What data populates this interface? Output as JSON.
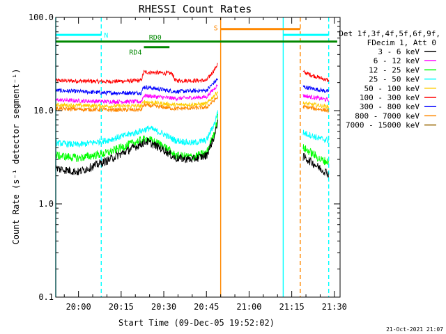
{
  "chart_data": {
    "type": "line",
    "title": "RHESSI Count Rates",
    "xlabel": "Start Time (09-Dec-05 19:52:02)",
    "ylabel": "Count Rate (s⁻¹ detector segment⁻¹)",
    "y_scale": "log",
    "ylim": [
      0.1,
      100
    ],
    "xlim": [
      "19:52",
      "21:32"
    ],
    "x_ticks": [
      "20:00",
      "20:15",
      "20:30",
      "20:45",
      "21:00",
      "21:15",
      "21:30"
    ],
    "y_ticks": [
      "0.1",
      "1.0",
      "10.0",
      "100.0"
    ],
    "grid": false,
    "legend_position": "right",
    "legend_header": [
      "Det 1f,3f,4f,5f,6f,9f,",
      "FDecim 1, Att 0"
    ],
    "series": [
      {
        "name": "3 - 6 keV",
        "color": "#000000",
        "segments": [
          {
            "x": [
              "19:52",
              "20:00",
              "20:10",
              "20:20",
              "20:24",
              "20:30",
              "20:34",
              "20:40",
              "20:45",
              "20:48",
              "20:49"
            ],
            "y": [
              2.4,
              2.2,
              2.9,
              4.1,
              4.7,
              3.8,
              3.1,
              3.0,
              3.3,
              5.5,
              8.0
            ]
          },
          {
            "x": [
              "21:19",
              "21:22",
              "21:25",
              "21:28"
            ],
            "y": [
              3.2,
              2.8,
              2.4,
              2.1
            ]
          }
        ]
      },
      {
        "name": "6 - 12 keV",
        "color": "#ff00ff",
        "segments": [
          {
            "x": [
              "19:52",
              "20:10",
              "20:22",
              "20:23",
              "20:34",
              "20:45",
              "20:49"
            ],
            "y": [
              13,
              12.5,
              12.5,
              14.5,
              13.5,
              14,
              19
            ]
          },
          {
            "x": [
              "21:19",
              "21:28"
            ],
            "y": [
              14.5,
              13
            ]
          }
        ]
      },
      {
        "name": "12 - 25 keV",
        "color": "#00ff00",
        "segments": [
          {
            "x": [
              "19:52",
              "20:00",
              "20:10",
              "20:20",
              "20:24",
              "20:30",
              "20:34",
              "20:40",
              "20:45",
              "20:48",
              "20:49"
            ],
            "y": [
              3.3,
              3.1,
              3.5,
              4.6,
              5.0,
              4.2,
              3.3,
              3.2,
              3.5,
              6.0,
              8.5
            ]
          },
          {
            "x": [
              "21:19",
              "21:22",
              "21:25",
              "21:28"
            ],
            "y": [
              4.0,
              3.5,
              3.0,
              2.8
            ]
          }
        ]
      },
      {
        "name": "25 - 50 keV",
        "color": "#00ffff",
        "segments": [
          {
            "x": [
              "19:52",
              "20:00",
              "20:10",
              "20:20",
              "20:25",
              "20:30",
              "20:34",
              "20:40",
              "20:45",
              "20:48",
              "20:49"
            ],
            "y": [
              4.5,
              4.3,
              4.8,
              5.8,
              6.5,
              5.6,
              4.8,
              4.5,
              4.8,
              7.5,
              10
            ]
          },
          {
            "x": [
              "21:19",
              "21:22",
              "21:25",
              "21:28"
            ],
            "y": [
              5.8,
              5.4,
              5.0,
              4.8
            ]
          }
        ]
      },
      {
        "name": "50 - 100 keV",
        "color": "#ffcc00",
        "segments": [
          {
            "x": [
              "19:52",
              "20:10",
              "20:22",
              "20:23",
              "20:34",
              "20:45",
              "20:49"
            ],
            "y": [
              11.5,
              11.2,
              11.2,
              12.5,
              11.5,
              11.8,
              16
            ]
          },
          {
            "x": [
              "21:19",
              "21:28"
            ],
            "y": [
              12,
              11
            ]
          }
        ]
      },
      {
        "name": "100 - 300 keV",
        "color": "#ff0000",
        "segments": [
          {
            "x": [
              "19:52",
              "20:10",
              "20:22",
              "20:23",
              "20:33",
              "20:34",
              "20:45",
              "20:48",
              "20:49"
            ],
            "y": [
              21,
              20.5,
              21,
              26,
              25,
              21,
              21,
              28,
              32
            ]
          },
          {
            "x": [
              "21:19",
              "21:22",
              "21:28"
            ],
            "y": [
              26,
              24,
              21
            ]
          }
        ]
      },
      {
        "name": "300 - 800 keV",
        "color": "#0000ff",
        "segments": [
          {
            "x": [
              "19:52",
              "20:10",
              "20:22",
              "20:23",
              "20:34",
              "20:45",
              "20:49"
            ],
            "y": [
              16.5,
              15.5,
              15.5,
              18,
              16,
              16.5,
              22
            ]
          },
          {
            "x": [
              "21:19",
              "21:28"
            ],
            "y": [
              18,
              16
            ]
          }
        ]
      },
      {
        "name": "800 - 7000 keV",
        "color": "#ff8800",
        "segments": [
          {
            "x": [
              "19:52",
              "20:10",
              "20:22",
              "20:23",
              "20:34",
              "20:45",
              "20:49"
            ],
            "y": [
              10.5,
              10.2,
              10.2,
              11.5,
              10.5,
              10.8,
              14
            ]
          },
          {
            "x": [
              "21:19",
              "21:28"
            ],
            "y": [
              11,
              10
            ]
          }
        ]
      },
      {
        "name": "7000 - 15000 keV",
        "color": "#996600",
        "segments": []
      }
    ],
    "annotations": {
      "intervals": [
        {
          "label": "N",
          "start": "19:52",
          "end": "20:08",
          "y": 65,
          "color": "#00ffff"
        },
        {
          "label": "",
          "start": "21:12",
          "end": "21:28",
          "y": 65,
          "color": "#00ffff"
        },
        {
          "label": "S",
          "start": "20:50",
          "end": "21:18",
          "y": 75,
          "color": "#ff8800"
        },
        {
          "label": "RD0",
          "start": "19:52",
          "end": "21:31",
          "y": 55,
          "color": "#008800"
        },
        {
          "label": "RD4",
          "start": "20:23",
          "end": "20:32",
          "y": 48,
          "color": "#008800"
        }
      ],
      "vertical_lines": [
        {
          "x": "19:52",
          "color": "#00ffff",
          "style": "solid"
        },
        {
          "x": "20:08",
          "color": "#00ffff",
          "style": "dashed"
        },
        {
          "x": "20:50",
          "color": "#ff8800",
          "style": "solid"
        },
        {
          "x": "21:12",
          "color": "#00ffff",
          "style": "solid"
        },
        {
          "x": "21:18",
          "color": "#ff8800",
          "style": "dashed"
        },
        {
          "x": "21:28",
          "color": "#00ffff",
          "style": "dashed"
        }
      ]
    },
    "footer_timestamp": "21-Oct-2021 21:07"
  }
}
